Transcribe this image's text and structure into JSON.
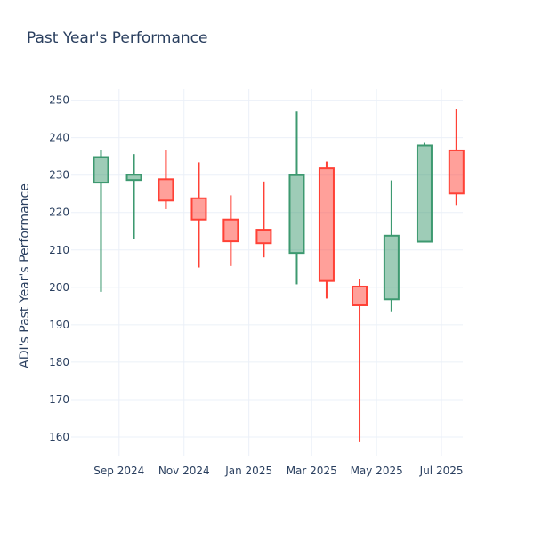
{
  "chart_data": {
    "type": "candlestick",
    "title": "Past Year's Performance",
    "ylabel": "ADI's Past Year's Performance",
    "xlabel": "",
    "ylim": [
      155,
      253
    ],
    "y_ticks": [
      160,
      170,
      180,
      190,
      200,
      210,
      220,
      230,
      240,
      250
    ],
    "x_ticks": [
      "Sep 2024",
      "Nov 2024",
      "Jan 2025",
      "Mar 2025",
      "May 2025",
      "Jul 2025"
    ],
    "grid": true,
    "legend": "none",
    "colors": {
      "increasing": "#3d9970",
      "decreasing": "#ff4136",
      "increasing_fill": "rgba(61,153,112,0.5)",
      "decreasing_fill": "rgba(255,65,54,0.5)"
    },
    "candles": [
      {
        "date": "2024-08",
        "open": 228,
        "high": 236.8,
        "low": 198.8,
        "close": 234.8
      },
      {
        "date": "2024-09",
        "open": 228.7,
        "high": 235.6,
        "low": 212.8,
        "close": 230.1
      },
      {
        "date": "2024-10",
        "open": 228.9,
        "high": 236.8,
        "low": 220.9,
        "close": 223.2
      },
      {
        "date": "2024-11",
        "open": 223.8,
        "high": 233.4,
        "low": 205.3,
        "close": 218.1
      },
      {
        "date": "2024-12",
        "open": 218.1,
        "high": 224.6,
        "low": 205.7,
        "close": 212.3
      },
      {
        "date": "2025-01",
        "open": 215.4,
        "high": 228.3,
        "low": 208,
        "close": 211.8
      },
      {
        "date": "2025-02",
        "open": 209.2,
        "high": 247,
        "low": 200.8,
        "close": 230
      },
      {
        "date": "2025-03",
        "open": 231.8,
        "high": 233.6,
        "low": 197,
        "close": 201.7
      },
      {
        "date": "2025-04",
        "open": 200.2,
        "high": 202.1,
        "low": 158.6,
        "close": 195.2
      },
      {
        "date": "2025-05",
        "open": 196.8,
        "high": 228.6,
        "low": 193.6,
        "close": 213.8
      },
      {
        "date": "2025-06",
        "open": 212.2,
        "high": 238.6,
        "low": 212.2,
        "close": 237.9
      },
      {
        "date": "2025-07",
        "open": 236.6,
        "high": 247.6,
        "low": 222,
        "close": 225.1
      }
    ]
  }
}
